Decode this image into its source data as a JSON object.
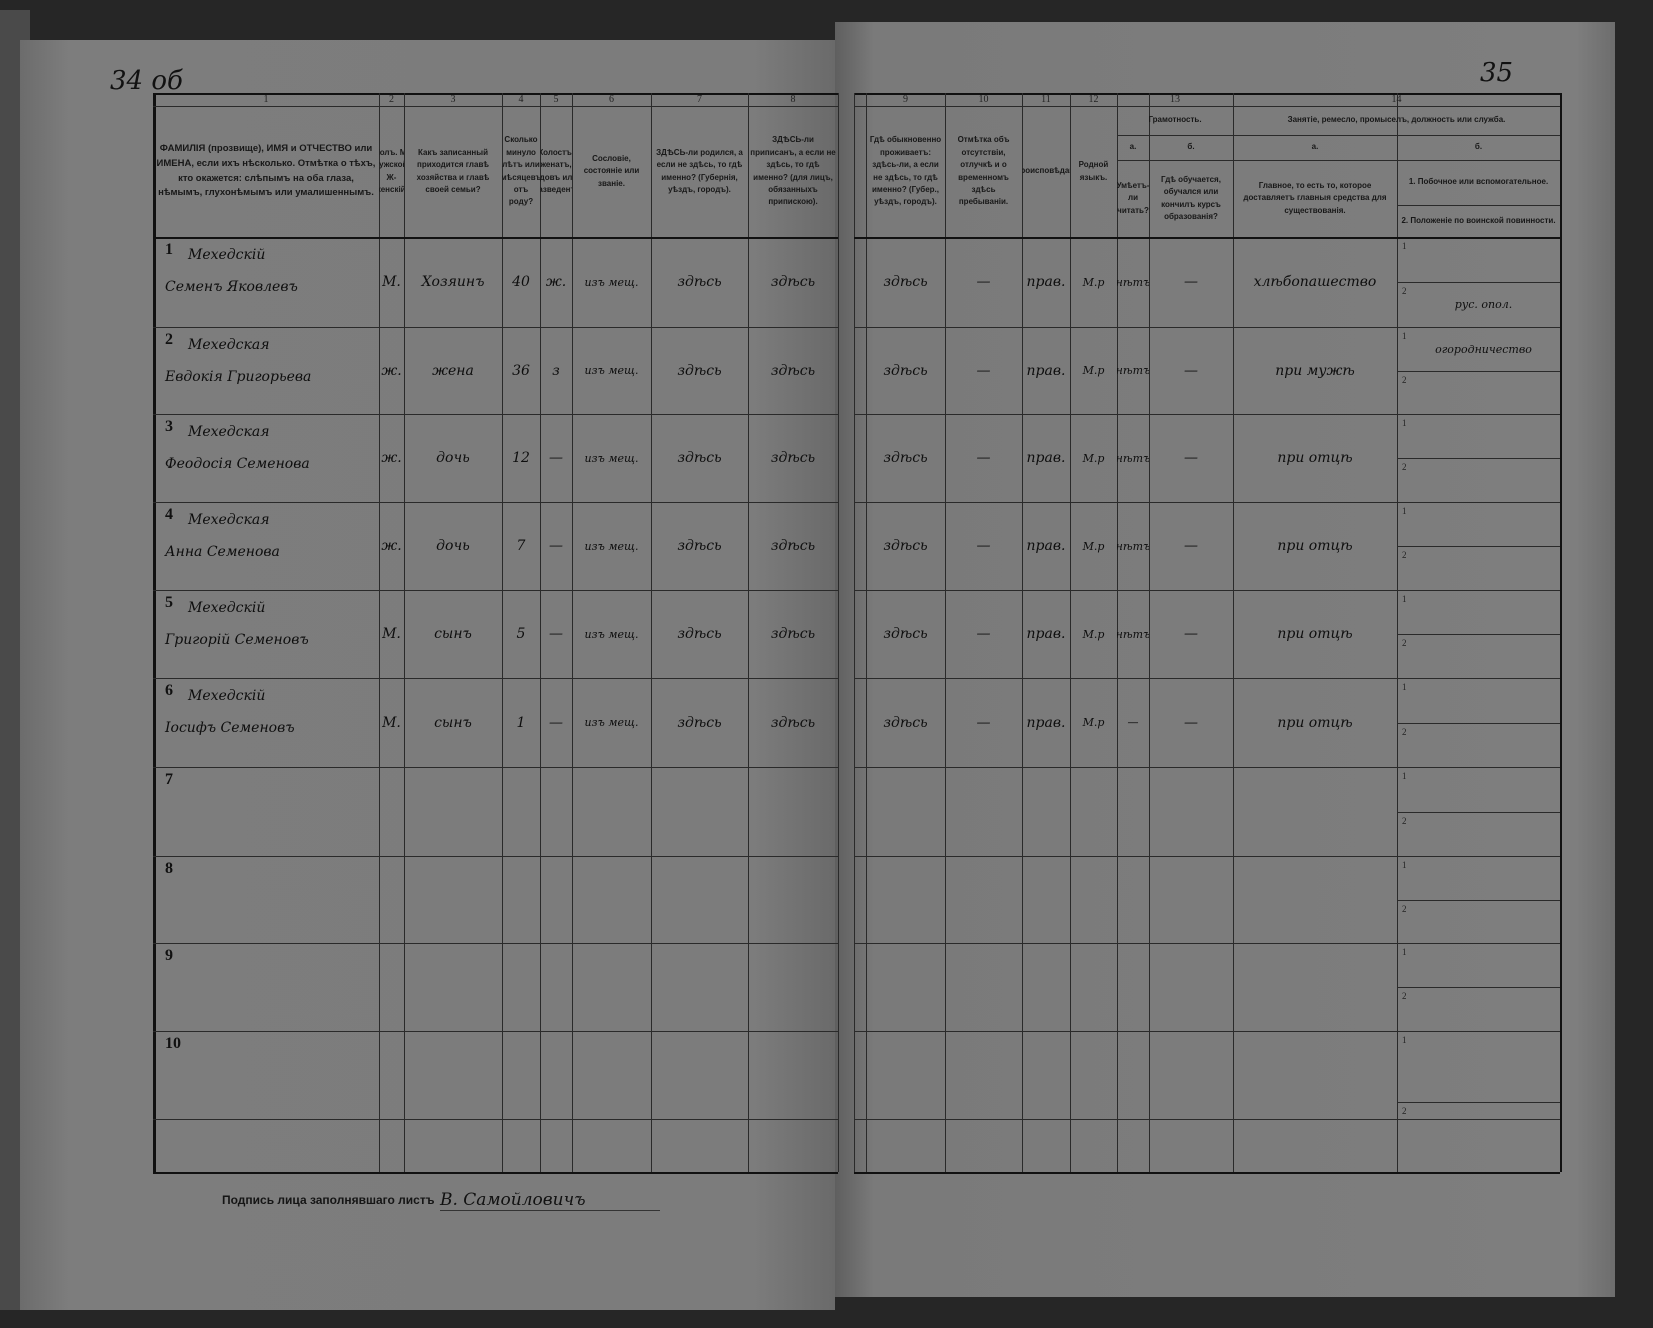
{
  "document": {
    "page_number_left": "34 об",
    "page_number_right": "35",
    "signature_label": "Подпись лица заполнявшаго листъ",
    "signature": "В. Самойловичъ"
  },
  "left_table": {
    "column_numbers": [
      "1",
      "2",
      "3",
      "4",
      "5",
      "6",
      "7",
      "8"
    ],
    "headers": [
      "ФАМИЛІЯ (прозвище), ИМЯ и ОТЧЕСТВО или ИМЕНА, если ихъ нѣсколько. Отмѣтка о тѣхъ, кто окажется: слѣпымъ на оба глаза, нѣмымъ, глухонѣмымъ или умалишеннымъ.",
      "Полъ. М-мужской. Ж-женскій.",
      "Какъ записанный приходится главѣ хозяйства и главѣ своей семьи?",
      "Сколько минуло лѣтъ или мѣсяцевъ отъ роду?",
      "Холостъ, женатъ, вдовъ или разведенъ.",
      "Сословіе, состояніе или званіе.",
      "ЗДѢСЬ-ли родился, а если не здѣсь, то гдѣ именно? (Губернія, уѣздъ, городъ).",
      "ЗДѢСЬ-ли приписанъ, а если не здѣсь, то гдѣ именно? (для лицъ, обязанныхъ припискою)."
    ]
  },
  "right_table": {
    "column_numbers": [
      "9",
      "10",
      "11",
      "12",
      "13",
      "14"
    ],
    "headers": {
      "c9": "Гдѣ обыкновенно проживаетъ: здѣсь-ли, а если не здѣсь, то гдѣ именно? (Губер., уѣздъ, городъ).",
      "c10": "Отмѣтка объ отсутствіи, отлучкѣ и о временномъ здѣсь пребываніи.",
      "c11": "Вѣроисповѣданіе.",
      "c12": "Родной языкъ.",
      "c13": "Грамотность.",
      "c13a_letter": "а.",
      "c13b_letter": "б.",
      "c13a": "Умѣетъ-ли читать?",
      "c13b": "Гдѣ обучается, обучался или кончилъ курсъ образованія?",
      "c14": "Занятіе, ремесло, промыселъ, должность или служба.",
      "c14a_letter": "а.",
      "c14b_letter": "б.",
      "c14a": "Главное, то есть то, которое доставляетъ главныя средства для существованія.",
      "c14b1": "1. Побочное или вспомогательное.",
      "c14b2": "2. Положеніе по воинской повинности."
    },
    "sub_labels": [
      "1",
      "2"
    ]
  },
  "rows": [
    {
      "num": "1",
      "surname": "Мехедскій",
      "given": "Семенъ Яковлевъ",
      "sex": "М.",
      "relation": "Хозяинъ",
      "age": "40",
      "marital": "ж.",
      "estate": "изъ мещ.",
      "born": "здѣсь",
      "registered": "здѣсь",
      "resides": "здѣсь",
      "absence": "—",
      "religion": "прав.",
      "language": "М.р",
      "reads": "нѣтъ",
      "schooling": "—",
      "occupation": "хлѣбопашество",
      "secondary": "",
      "military": "рус. опол."
    },
    {
      "num": "2",
      "surname": "Мехедская",
      "given": "Евдокія Григорьева",
      "sex": "ж.",
      "relation": "жена",
      "age": "36",
      "marital": "з",
      "estate": "изъ мещ.",
      "born": "здѣсь",
      "registered": "здѣсь",
      "resides": "здѣсь",
      "absence": "—",
      "religion": "прав.",
      "language": "М.р",
      "reads": "нѣтъ",
      "schooling": "—",
      "occupation": "при мужѣ",
      "secondary": "огородничество",
      "military": ""
    },
    {
      "num": "3",
      "surname": "Мехедская",
      "given": "Феодосія Семенова",
      "sex": "ж.",
      "relation": "дочь",
      "age": "12",
      "marital": "—",
      "estate": "изъ мещ.",
      "born": "здѣсь",
      "registered": "здѣсь",
      "resides": "здѣсь",
      "absence": "—",
      "religion": "прав.",
      "language": "М.р",
      "reads": "нѣтъ",
      "schooling": "—",
      "occupation": "при отцѣ",
      "secondary": "",
      "military": ""
    },
    {
      "num": "4",
      "surname": "Мехедская",
      "given": "Анна Семенова",
      "sex": "ж.",
      "relation": "дочь",
      "age": "7",
      "marital": "—",
      "estate": "изъ мещ.",
      "born": "здѣсь",
      "registered": "здѣсь",
      "resides": "здѣсь",
      "absence": "—",
      "religion": "прав.",
      "language": "М.р",
      "reads": "нѣтъ",
      "schooling": "—",
      "occupation": "при отцѣ",
      "secondary": "",
      "military": ""
    },
    {
      "num": "5",
      "surname": "Мехедскій",
      "given": "Григорій Семеновъ",
      "sex": "М.",
      "relation": "сынъ",
      "age": "5",
      "marital": "—",
      "estate": "изъ мещ.",
      "born": "здѣсь",
      "registered": "здѣсь",
      "resides": "здѣсь",
      "absence": "—",
      "religion": "прав.",
      "language": "М.р",
      "reads": "нѣтъ",
      "schooling": "—",
      "occupation": "при отцѣ",
      "secondary": "",
      "military": ""
    },
    {
      "num": "6",
      "surname": "Мехедскій",
      "given": "Іосифъ Семеновъ",
      "sex": "М.",
      "relation": "сынъ",
      "age": "1",
      "marital": "—",
      "estate": "изъ мещ.",
      "born": "здѣсь",
      "registered": "здѣсь",
      "resides": "здѣсь",
      "absence": "—",
      "religion": "прав.",
      "language": "М.р",
      "reads": "—",
      "schooling": "—",
      "occupation": "при отцѣ",
      "secondary": "",
      "military": ""
    },
    {
      "num": "7"
    },
    {
      "num": "8"
    },
    {
      "num": "9"
    },
    {
      "num": "10"
    }
  ]
}
